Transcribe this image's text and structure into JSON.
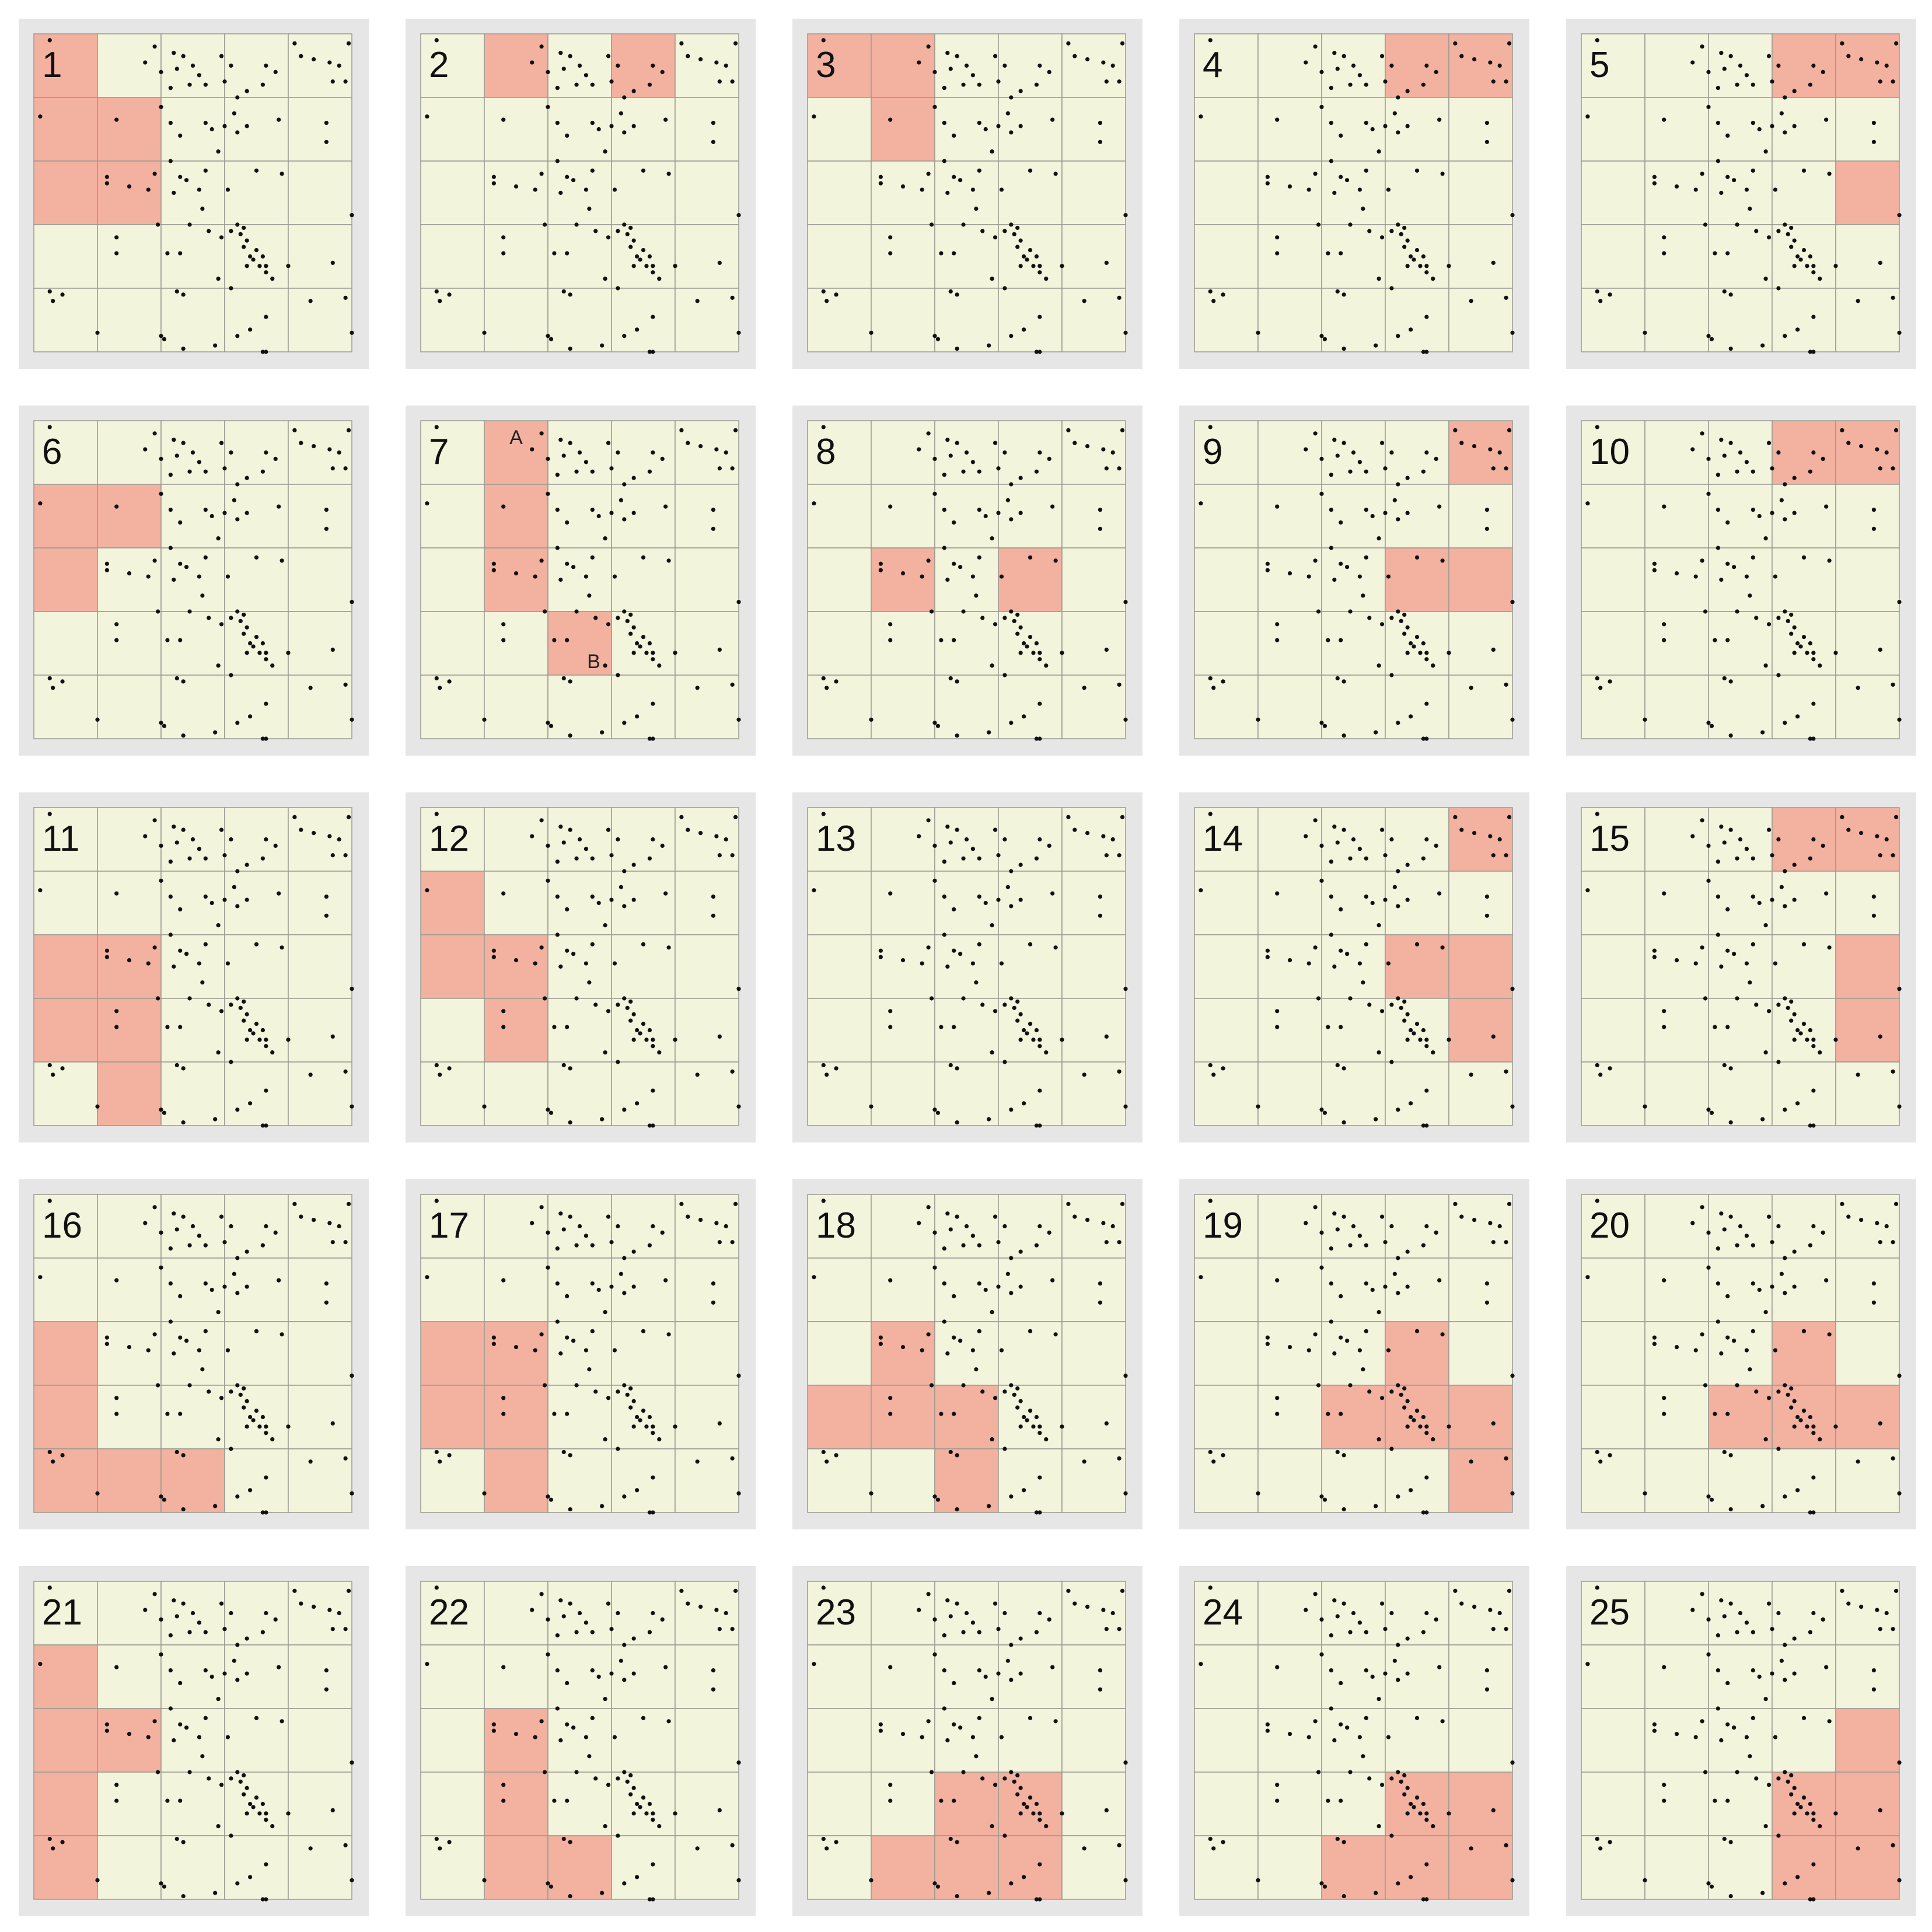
{
  "figure": {
    "grid_rows": 5,
    "grid_cols": 5,
    "colors": {
      "background": "#ffffff",
      "panel_frame": "#e6e6e6",
      "cell": "#f3f4dc",
      "highlight": "#f3b1a0",
      "cell_border": "#9a9a92",
      "point": "#111111"
    }
  },
  "points": [
    [
      0.05,
      0.98
    ],
    [
      0.82,
      0.97
    ],
    [
      0.99,
      0.97
    ],
    [
      0.84,
      0.93
    ],
    [
      0.88,
      0.92
    ],
    [
      0.93,
      0.91
    ],
    [
      0.96,
      0.9
    ],
    [
      0.38,
      0.96
    ],
    [
      0.44,
      0.94
    ],
    [
      0.47,
      0.93
    ],
    [
      0.35,
      0.91
    ],
    [
      0.4,
      0.88
    ],
    [
      0.45,
      0.89
    ],
    [
      0.5,
      0.9
    ],
    [
      0.52,
      0.87
    ],
    [
      0.54,
      0.84
    ],
    [
      0.49,
      0.84
    ],
    [
      0.43,
      0.83
    ],
    [
      0.6,
      0.85
    ],
    [
      0.67,
      0.82
    ],
    [
      0.64,
      0.8
    ],
    [
      0.72,
      0.84
    ],
    [
      0.76,
      0.88
    ],
    [
      0.73,
      0.9
    ],
    [
      0.59,
      0.93
    ],
    [
      0.62,
      0.9
    ],
    [
      0.98,
      0.85
    ],
    [
      0.94,
      0.85
    ],
    [
      0.02,
      0.74
    ],
    [
      0.26,
      0.73
    ],
    [
      0.4,
      0.77
    ],
    [
      0.43,
      0.72
    ],
    [
      0.46,
      0.68
    ],
    [
      0.54,
      0.72
    ],
    [
      0.56,
      0.7
    ],
    [
      0.63,
      0.75
    ],
    [
      0.6,
      0.71
    ],
    [
      0.64,
      0.69
    ],
    [
      0.67,
      0.71
    ],
    [
      0.77,
      0.73
    ],
    [
      0.92,
      0.72
    ],
    [
      0.92,
      0.66
    ],
    [
      0.23,
      0.55
    ],
    [
      0.23,
      0.53
    ],
    [
      0.38,
      0.56
    ],
    [
      0.36,
      0.51
    ],
    [
      0.46,
      0.55
    ],
    [
      0.43,
      0.6
    ],
    [
      0.44,
      0.5
    ],
    [
      0.48,
      0.54
    ],
    [
      0.52,
      0.51
    ],
    [
      0.54,
      0.57
    ],
    [
      0.58,
      0.63
    ],
    [
      0.61,
      0.51
    ],
    [
      0.7,
      0.57
    ],
    [
      0.78,
      0.56
    ],
    [
      0.53,
      0.45
    ],
    [
      0.55,
      0.38
    ],
    [
      0.59,
      0.36
    ],
    [
      0.49,
      0.4
    ],
    [
      0.42,
      0.31
    ],
    [
      0.46,
      0.31
    ],
    [
      0.39,
      0.4
    ],
    [
      0.64,
      0.4
    ],
    [
      0.62,
      0.38
    ],
    [
      0.66,
      0.39
    ],
    [
      0.65,
      0.37
    ],
    [
      0.67,
      0.35
    ],
    [
      0.66,
      0.33
    ],
    [
      0.68,
      0.3
    ],
    [
      0.7,
      0.32
    ],
    [
      0.69,
      0.29
    ],
    [
      0.71,
      0.27
    ],
    [
      0.72,
      0.3
    ],
    [
      0.73,
      0.25
    ],
    [
      0.73,
      0.27
    ],
    [
      0.67,
      0.27
    ],
    [
      0.75,
      0.23
    ],
    [
      0.26,
      0.36
    ],
    [
      0.26,
      0.31
    ],
    [
      0.3,
      0.52
    ],
    [
      0.94,
      0.28
    ],
    [
      1.0,
      0.43
    ],
    [
      0.45,
      0.19
    ],
    [
      0.47,
      0.18
    ],
    [
      0.58,
      0.23
    ],
    [
      0.62,
      0.2
    ],
    [
      0.8,
      0.27
    ],
    [
      0.05,
      0.19
    ],
    [
      0.09,
      0.18
    ],
    [
      0.06,
      0.16
    ],
    [
      0.64,
      0.05
    ],
    [
      0.68,
      0.07
    ],
    [
      0.73,
      0.11
    ],
    [
      0.87,
      0.16
    ],
    [
      0.2,
      0.06
    ],
    [
      0.4,
      0.05
    ],
    [
      0.41,
      0.04
    ],
    [
      0.47,
      0.01
    ],
    [
      0.57,
      0.02
    ],
    [
      0.72,
      0.0
    ],
    [
      0.73,
      0.0
    ],
    [
      1.0,
      0.06
    ],
    [
      0.98,
      0.17
    ]
  ],
  "panels": [
    {
      "label": "1",
      "highlight": [
        [
          0,
          0
        ],
        [
          1,
          0
        ],
        [
          1,
          1
        ],
        [
          2,
          0
        ],
        [
          2,
          1
        ]
      ]
    },
    {
      "label": "2",
      "highlight": [
        [
          0,
          1
        ],
        [
          0,
          3
        ]
      ]
    },
    {
      "label": "3",
      "highlight": [
        [
          0,
          0
        ],
        [
          0,
          1
        ],
        [
          1,
          1
        ]
      ]
    },
    {
      "label": "4",
      "highlight": [
        [
          0,
          3
        ],
        [
          0,
          4
        ]
      ]
    },
    {
      "label": "5",
      "highlight": [
        [
          0,
          3
        ],
        [
          0,
          4
        ],
        [
          2,
          4
        ]
      ]
    },
    {
      "label": "6",
      "highlight": [
        [
          1,
          0
        ],
        [
          1,
          1
        ],
        [
          2,
          0
        ]
      ]
    },
    {
      "label": "7",
      "highlight": [
        [
          0,
          1
        ],
        [
          1,
          1
        ],
        [
          2,
          1
        ],
        [
          3,
          2
        ]
      ],
      "cell_labels": [
        {
          "r": 0,
          "c": 1,
          "text": "A",
          "pos": "top"
        },
        {
          "r": 3,
          "c": 2,
          "text": "B",
          "pos": "bottom-right"
        }
      ]
    },
    {
      "label": "8",
      "highlight": [
        [
          2,
          1
        ],
        [
          2,
          3
        ]
      ]
    },
    {
      "label": "9",
      "highlight": [
        [
          0,
          4
        ],
        [
          2,
          3
        ],
        [
          2,
          4
        ]
      ]
    },
    {
      "label": "10",
      "highlight": [
        [
          0,
          3
        ],
        [
          0,
          4
        ]
      ]
    },
    {
      "label": "11",
      "highlight": [
        [
          2,
          0
        ],
        [
          2,
          1
        ],
        [
          3,
          0
        ],
        [
          3,
          1
        ],
        [
          4,
          1
        ]
      ]
    },
    {
      "label": "12",
      "highlight": [
        [
          1,
          0
        ],
        [
          2,
          0
        ],
        [
          2,
          1
        ],
        [
          3,
          1
        ]
      ]
    },
    {
      "label": "13",
      "highlight": []
    },
    {
      "label": "14",
      "highlight": [
        [
          0,
          4
        ],
        [
          2,
          3
        ],
        [
          2,
          4
        ],
        [
          3,
          4
        ]
      ]
    },
    {
      "label": "15",
      "highlight": [
        [
          0,
          3
        ],
        [
          0,
          4
        ],
        [
          2,
          4
        ],
        [
          3,
          4
        ]
      ]
    },
    {
      "label": "16",
      "highlight": [
        [
          2,
          0
        ],
        [
          3,
          0
        ],
        [
          4,
          0
        ],
        [
          4,
          1
        ],
        [
          4,
          2
        ]
      ]
    },
    {
      "label": "17",
      "highlight": [
        [
          2,
          0
        ],
        [
          2,
          1
        ],
        [
          3,
          0
        ],
        [
          3,
          1
        ],
        [
          4,
          1
        ]
      ]
    },
    {
      "label": "18",
      "highlight": [
        [
          2,
          1
        ],
        [
          3,
          0
        ],
        [
          3,
          1
        ],
        [
          3,
          2
        ],
        [
          4,
          2
        ]
      ]
    },
    {
      "label": "19",
      "highlight": [
        [
          2,
          3
        ],
        [
          3,
          2
        ],
        [
          3,
          3
        ],
        [
          3,
          4
        ],
        [
          4,
          4
        ]
      ]
    },
    {
      "label": "20",
      "highlight": [
        [
          2,
          3
        ],
        [
          3,
          2
        ],
        [
          3,
          3
        ],
        [
          3,
          4
        ]
      ]
    },
    {
      "label": "21",
      "highlight": [
        [
          1,
          0
        ],
        [
          2,
          0
        ],
        [
          2,
          1
        ],
        [
          3,
          0
        ],
        [
          4,
          0
        ]
      ]
    },
    {
      "label": "22",
      "highlight": [
        [
          2,
          1
        ],
        [
          3,
          1
        ],
        [
          4,
          1
        ],
        [
          4,
          2
        ]
      ]
    },
    {
      "label": "23",
      "highlight": [
        [
          3,
          2
        ],
        [
          3,
          3
        ],
        [
          4,
          1
        ],
        [
          4,
          2
        ],
        [
          4,
          3
        ]
      ]
    },
    {
      "label": "24",
      "highlight": [
        [
          3,
          3
        ],
        [
          3,
          4
        ],
        [
          4,
          2
        ],
        [
          4,
          3
        ],
        [
          4,
          4
        ]
      ]
    },
    {
      "label": "25",
      "highlight": [
        [
          2,
          4
        ],
        [
          3,
          3
        ],
        [
          3,
          4
        ],
        [
          4,
          3
        ],
        [
          4,
          4
        ]
      ]
    }
  ]
}
